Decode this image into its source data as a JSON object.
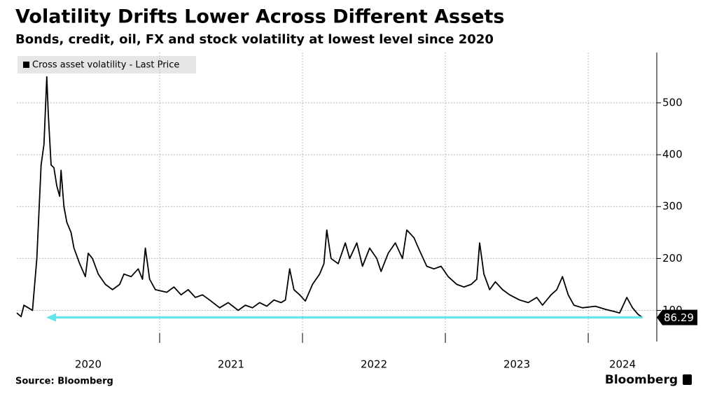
{
  "chart_data": {
    "type": "line",
    "title": "Volatility Drifts Lower Across Different Assets",
    "subtitle": "Bonds, credit, oil, FX and stock volatility at lowest level since 2020",
    "source": "Source: Bloomberg",
    "brand": "Bloomberg",
    "x": [
      2020.0,
      2020.03,
      2020.05,
      2020.08,
      2020.11,
      2020.14,
      2020.17,
      2020.19,
      2020.21,
      2020.22,
      2020.24,
      2020.26,
      2020.28,
      2020.3,
      2020.31,
      2020.33,
      2020.35,
      2020.38,
      2020.4,
      2020.44,
      2020.48,
      2020.5,
      2020.53,
      2020.57,
      2020.62,
      2020.67,
      2020.72,
      2020.75,
      2020.8,
      2020.85,
      2020.88,
      2020.9,
      2020.93,
      2020.97,
      2021.05,
      2021.1,
      2021.15,
      2021.2,
      2021.25,
      2021.3,
      2021.35,
      2021.42,
      2021.48,
      2021.55,
      2021.6,
      2021.65,
      2021.7,
      2021.75,
      2021.8,
      2021.85,
      2021.88,
      2021.91,
      2021.94,
      2021.98,
      2022.02,
      2022.07,
      2022.12,
      2022.15,
      2022.17,
      2022.2,
      2022.25,
      2022.3,
      2022.33,
      2022.38,
      2022.42,
      2022.47,
      2022.52,
      2022.55,
      2022.6,
      2022.65,
      2022.7,
      2022.73,
      2022.78,
      2022.82,
      2022.87,
      2022.92,
      2022.97,
      2023.02,
      2023.08,
      2023.13,
      2023.18,
      2023.22,
      2023.24,
      2023.27,
      2023.31,
      2023.35,
      2023.4,
      2023.45,
      2023.52,
      2023.58,
      2023.64,
      2023.68,
      2023.74,
      2023.78,
      2023.82,
      2023.86,
      2023.9,
      2023.96,
      2024.05,
      2024.12,
      2024.18,
      2024.22,
      2024.27,
      2024.31,
      2024.35,
      2024.38
    ],
    "series": [
      {
        "name": "Cross asset volatility - Last Price",
        "color": "#000000",
        "values": [
          95,
          88,
          110,
          105,
          100,
          200,
          380,
          420,
          550,
          480,
          380,
          375,
          340,
          320,
          370,
          300,
          270,
          250,
          220,
          190,
          165,
          210,
          200,
          170,
          150,
          140,
          150,
          170,
          165,
          180,
          160,
          220,
          160,
          140,
          135,
          145,
          130,
          140,
          125,
          130,
          120,
          105,
          115,
          100,
          110,
          105,
          115,
          108,
          120,
          115,
          120,
          180,
          140,
          130,
          118,
          150,
          170,
          190,
          255,
          200,
          190,
          230,
          200,
          230,
          185,
          220,
          200,
          175,
          210,
          230,
          200,
          255,
          240,
          215,
          185,
          180,
          185,
          165,
          150,
          145,
          150,
          160,
          230,
          170,
          140,
          155,
          140,
          130,
          120,
          115,
          125,
          110,
          130,
          140,
          165,
          130,
          110,
          105,
          108,
          102,
          98,
          95,
          125,
          105,
          92,
          86.29
        ]
      }
    ],
    "xlim": [
      2020,
      2024.48
    ],
    "xticks": [
      {
        "value": 2020.5,
        "label": "2020"
      },
      {
        "value": 2021.5,
        "label": "2021"
      },
      {
        "value": 2022.5,
        "label": "2022"
      },
      {
        "value": 2023.5,
        "label": "2023"
      },
      {
        "value": 2024.24,
        "label": "2024"
      }
    ],
    "xgrid": [
      2021,
      2022,
      2023,
      2024
    ],
    "ylim": [
      40,
      597
    ],
    "yticks": [
      100,
      200,
      300,
      400,
      500
    ],
    "grid": true
  }
}
